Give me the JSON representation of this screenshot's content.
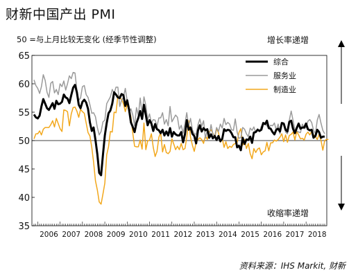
{
  "title": "财新中国产出 PMI",
  "subtitle": "50 =与上月比较无变化 (经季节性调整)",
  "label_up": "增长率递增",
  "label_down": "收缩率递增",
  "source": "资料来源：IHS Markit, 财新",
  "colors": {
    "composite": "#000000",
    "services": "#9a9a9a",
    "manufacturing": "#f2a71b",
    "refline": "#000000"
  },
  "chart_data": {
    "type": "line",
    "x_start": "2005-11",
    "x_end": "2018-12",
    "ylim": [
      35,
      65
    ],
    "yticks": [
      35,
      40,
      45,
      50,
      55,
      60,
      65
    ],
    "xticks": [
      "2006",
      "2007",
      "2008",
      "2009",
      "2010",
      "2011",
      "2012",
      "2013",
      "2014",
      "2015",
      "2016",
      "2017",
      "2018"
    ],
    "reference_line": 50,
    "legend_position": "top-right",
    "series": [
      {
        "name": "综合",
        "key": "composite",
        "stroke_width": 3,
        "values": [
          54.6,
          54.1,
          53.9,
          54.4,
          56.0,
          57.3,
          56.5,
          55.7,
          55.4,
          56.0,
          56.6,
          55.6,
          57.0,
          56.4,
          56.5,
          56.8,
          58.1,
          57.6,
          57.4,
          56.6,
          58.0,
          59.3,
          59.8,
          58.5,
          56.3,
          55.7,
          56.8,
          57.2,
          56.7,
          55.6,
          53.2,
          51.7,
          52.3,
          50.1,
          47.6,
          44.3,
          43.9,
          47.5,
          50.9,
          53.1,
          54.8,
          55.3,
          56.5,
          58.5,
          58.1,
          57.6,
          57.5,
          58.2,
          58.0,
          56.1,
          57.1,
          55.5,
          53.2,
          52.4,
          51.5,
          53.1,
          54.0,
          55.2,
          53.8,
          56.3,
          54.5,
          52.7,
          53.6,
          53.0,
          51.7,
          52.9,
          52.0,
          51.8,
          51.3,
          51.9,
          50.9,
          51.6,
          50.9,
          52.2,
          50.7,
          51.5,
          51.1,
          50.9,
          50.9,
          51.5,
          49.7,
          51.1,
          53.6,
          51.9,
          52.3,
          51.2,
          50.8,
          49.5,
          51.8,
          52.7,
          51.6,
          52.2,
          51.8,
          52.0,
          50.5,
          51.1,
          50.4,
          50.8,
          50.1,
          50.8,
          49.9,
          50.3,
          52.0,
          51.7,
          51.9,
          51.8,
          51.3,
          50.6,
          50.6,
          48.8,
          49.1,
          48.3,
          50.5,
          49.4,
          50.2,
          50.1,
          50.7,
          49.6,
          51.4,
          51.5,
          51.9,
          51.7,
          51.9,
          53.1,
          52.9,
          53.5,
          52.2,
          52.1,
          51.5,
          51.1,
          51.9,
          52.1,
          51.6,
          53.1,
          53.0,
          51.9,
          51.6,
          53.3,
          53.5,
          52.1,
          51.3,
          52.2,
          53.0,
          52.1,
          52.3,
          52.3,
          53.0,
          52.0,
          51.8,
          51.9,
          50.5,
          50.8,
          51.9,
          51.5,
          50.5,
          50.7,
          50.7
        ]
      },
      {
        "name": "服务业",
        "key": "services",
        "stroke_width": 1.5,
        "values": [
          60.7,
          59.7,
          59.2,
          58.3,
          59.5,
          61.6,
          60.6,
          58.5,
          57.6,
          60.1,
          60.4,
          58.4,
          59.0,
          58.1,
          60.0,
          59.5,
          60.5,
          58.9,
          60.0,
          61.4,
          60.9,
          62.0,
          61.9,
          58.9,
          57.1,
          57.5,
          59.5,
          59.7,
          58.1,
          57.6,
          56.3,
          54.8,
          54.9,
          54.2,
          52.3,
          51.0,
          51.6,
          53.3,
          53.6,
          56.5,
          57.1,
          57.7,
          59.0,
          58.3,
          59.4,
          59.4,
          56.0,
          57.1,
          57.6,
          59.2,
          57.0,
          54.9,
          55.6,
          54.5,
          52.6,
          55.8,
          54.4,
          57.5,
          54.7,
          57.7,
          56.2,
          53.7,
          54.7,
          53.1,
          53.7,
          53.6,
          52.5,
          54.0,
          54.0,
          54.9,
          52.9,
          53.7,
          52.6,
          56.0,
          53.3,
          53.9,
          54.5,
          54.1,
          52.0,
          52.7,
          51.3,
          53.0,
          54.9,
          52.5,
          53.9,
          51.9,
          51.2,
          51.1,
          52.8,
          53.8,
          52.5,
          53.5,
          50.4,
          51.8,
          50.8,
          52.8,
          51.1,
          50.8,
          52.3,
          51.6,
          52.9,
          52.2,
          53.9,
          52.8,
          53.2,
          52.9,
          51.9,
          51.8,
          53.8,
          51.5,
          50.4,
          50.5,
          52.3,
          52.0,
          51.2,
          50.7,
          52.2,
          51.8,
          52.4,
          51.4,
          52.1,
          51.6,
          52.5,
          53.1,
          53.1,
          52.6,
          52.2,
          52.7,
          52.6,
          53.1,
          51.8,
          52.9,
          51.2,
          52.8,
          53.0,
          51.5,
          51.2,
          53.6,
          55.2,
          53.6,
          51.9,
          51.7,
          51.5,
          51.4,
          52.9,
          52.1,
          52.3,
          53.4,
          53.7,
          53.2,
          51.8,
          51.2,
          53.6,
          54.6,
          53.1,
          51.8,
          51.2
        ]
      },
      {
        "name": "制造业",
        "key": "manufacturing",
        "stroke_width": 1.5,
        "values": [
          50.3,
          51.2,
          51.2,
          51.7,
          51.0,
          52.0,
          52.3,
          52.3,
          52.3,
          52.8,
          53.5,
          52.4,
          53.9,
          53.0,
          52.1,
          51.6,
          55.4,
          55.3,
          55.1,
          52.6,
          54.7,
          55.8,
          55.9,
          55.2,
          54.1,
          55.5,
          55.1,
          54.8,
          53.1,
          51.4,
          50.8,
          48.8,
          46.2,
          42.9,
          41.3,
          39.2,
          38.8,
          40.6,
          42.5,
          47.5,
          48.9,
          51.6,
          51.5,
          55.0,
          54.9,
          57.9,
          57.4,
          57.3,
          56.5,
          55.1,
          56.3,
          55.6,
          54.2,
          51.3,
          49.0,
          48.9,
          48.9,
          50.1,
          48.5,
          53.1,
          48.4,
          49.9,
          50.1,
          51.2,
          48.8,
          47.2,
          48.1,
          50.6,
          51.4,
          48.0,
          49.3,
          47.9,
          47.7,
          48.1,
          50.3,
          49.4,
          48.4,
          49.0,
          48.4,
          49.5,
          48.4,
          48.6,
          50.6,
          53.5,
          50.6,
          49.2,
          48.1,
          49.7,
          50.2,
          50.5,
          50.2,
          49.5,
          50.9,
          50.2,
          51.6,
          51.9,
          51.3,
          50.5,
          52.1,
          51.4,
          49.7,
          50.4,
          48.8,
          49.8,
          48.6,
          49.0,
          48.8,
          49.3,
          49.5,
          49.7,
          51.4,
          52.1,
          49.2,
          50.2,
          48.6,
          49.5,
          47.7,
          46.8,
          48.6,
          47.9,
          48.5,
          48.7,
          47.5,
          48.0,
          48.2,
          49.7,
          48.2,
          49.6,
          49.6,
          50.1,
          49.9,
          50.2,
          50.6,
          51.2,
          49.8,
          51.0,
          49.7,
          50.9,
          51.1,
          51.5,
          50.1,
          51.6,
          51.0,
          50.3,
          50.4,
          50.1,
          51.1,
          51.5,
          51.0,
          51.6,
          51.0,
          50.7,
          50.2,
          51.1,
          50.1,
          48.3,
          50.0,
          50.2,
          50.2
        ]
      }
    ]
  }
}
